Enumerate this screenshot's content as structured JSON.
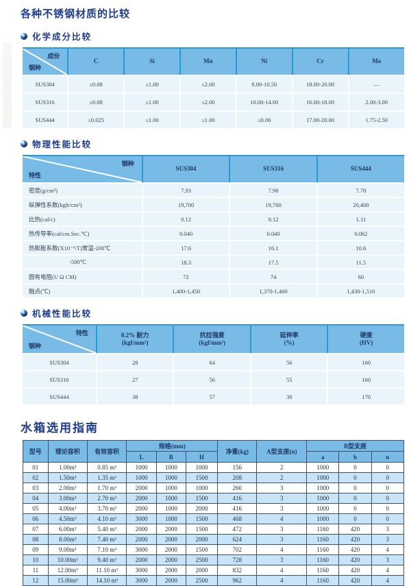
{
  "page": {
    "title": "各种不锈钢材质的比较"
  },
  "colors": {
    "accent_navy": "#1e3c8c",
    "table_header_blue": "#79bbe7",
    "table_separator_blue": "#2a9ad4",
    "cell_light_blue": "#eaf4fb",
    "tank_row_alt_blue": "#c8e4f8",
    "tank_border": "#3f5062"
  },
  "icons": {
    "section_bullet": "sphere-bullet-icon"
  },
  "chemical": {
    "section_label": "化学成分比较",
    "corner_top_right": "成份",
    "corner_bottom_left": "钢种",
    "columns": [
      "C",
      "Si",
      "Mn",
      "Ni",
      "Cr",
      "Mo"
    ],
    "rows": [
      {
        "name": "SUS304",
        "values": [
          "≤0.08",
          "≤1.00",
          "≤2.00",
          "8.00-10.50",
          "18.00-20.00",
          "—"
        ]
      },
      {
        "name": "SUS316",
        "values": [
          "≤0.08",
          "≤1.00",
          "≤2.00",
          "10.00-14.00",
          "16.00-18.00",
          "2.00-3.00"
        ]
      },
      {
        "name": "SUS444",
        "values": [
          "≤0.025",
          "≤1.00",
          "≤1.00",
          "≤0.06",
          "17.00-20.00",
          "1.75-2.50"
        ]
      }
    ]
  },
  "physical": {
    "section_label": "物理性能比较",
    "corner_top_right": "钢种",
    "corner_bottom_left": "特性",
    "columns": [
      "SUS304",
      "SUS316",
      "SUS444"
    ],
    "rows": [
      {
        "name": "密度(g/cm³)",
        "values": [
          "7.93",
          "7.98",
          "7.70"
        ]
      },
      {
        "name": "纵弹性系数(kgfr/cm²)",
        "values": [
          "19,700",
          "19,700",
          "20,400"
        ]
      },
      {
        "name": "比热(cal/c)",
        "values": [
          "0.12",
          "0.12",
          "1.11"
        ]
      },
      {
        "name": "热传导率(cal/cm.Sec.℃)",
        "values": [
          "0.040",
          "0.040",
          "0.062"
        ]
      },
      {
        "name": "热膨胀系数(X10⁻⁶/T)常温-200℃",
        "values": [
          "17.6",
          "16.1",
          "10.6"
        ]
      },
      {
        "name": "-500℃",
        "indent": true,
        "values": [
          "18.3",
          "17.5",
          "11.5"
        ]
      },
      {
        "name": "固有电阻(U Ω CM)",
        "values": [
          "72",
          "74",
          "60"
        ]
      },
      {
        "name": "融点(℃)",
        "values": [
          "1,400-1,450",
          "1,370-1,400",
          "1,430-1,510"
        ]
      }
    ]
  },
  "mechanical": {
    "section_label": "机械性能比较",
    "corner_top_right": "特性",
    "corner_bottom_left": "钢种",
    "columns": [
      {
        "title": "0.2% 耐力",
        "unit": "(kgf/mm²)"
      },
      {
        "title": "抗拉强度",
        "unit": "(kgf/mm²)"
      },
      {
        "title": "延伸率",
        "unit": "(%)"
      },
      {
        "title": "硬度",
        "unit": "(HV)"
      }
    ],
    "rows": [
      {
        "name": "SUS304",
        "values": [
          "28",
          "64",
          "56",
          "160"
        ]
      },
      {
        "name": "SUS316",
        "values": [
          "27",
          "56",
          "55",
          "160"
        ]
      },
      {
        "name": "SUS444",
        "values": [
          "38",
          "57",
          "30",
          "170"
        ]
      }
    ]
  },
  "tank": {
    "section_title": "水箱选用指南",
    "header": {
      "model": "型号",
      "theory": "理论容积",
      "effective": "有效容积",
      "spec_group": "规格(mm)",
      "spec_cols": [
        "L",
        "B",
        "H"
      ],
      "net": "净重(kg)",
      "a_seat": "A型支座(n)",
      "b_group": "B型支座",
      "b_cols": [
        "a",
        "b",
        "n"
      ]
    },
    "rows": [
      [
        "01",
        "1.00m³",
        "0.85 m³",
        "1000",
        "1000",
        "1000",
        "156",
        "2",
        "1000",
        "0",
        "0"
      ],
      [
        "02",
        "1.50m³",
        "1.35 m³",
        "1000",
        "1000",
        "1500",
        "208",
        "2",
        "1000",
        "0",
        "0"
      ],
      [
        "03",
        "2.00m³",
        "1.70 m³",
        "2000",
        "1000",
        "1000",
        "260",
        "3",
        "1000",
        "0",
        "0"
      ],
      [
        "04",
        "3.00m³",
        "2.70 m³",
        "2000",
        "1000",
        "1500",
        "416",
        "3",
        "1000",
        "0",
        "0"
      ],
      [
        "05",
        "4.00m³",
        "3.70 m³",
        "2000",
        "1000",
        "2000",
        "416",
        "3",
        "1000",
        "0",
        "0"
      ],
      [
        "06",
        "4.50m³",
        "4.10 m³",
        "3000",
        "1000",
        "1500",
        "468",
        "4",
        "1000",
        "0",
        "0"
      ],
      [
        "07",
        "6.00m³",
        "5.40 m³",
        "2000",
        "2000",
        "1500",
        "472",
        "3",
        "1160",
        "420",
        "3"
      ],
      [
        "08",
        "8.00m³",
        "7.40 m³",
        "2000",
        "2000",
        "2000",
        "624",
        "3",
        "1160",
        "420",
        "3"
      ],
      [
        "09",
        "9.00m³",
        "7.10 m³",
        "3000",
        "2000",
        "1500",
        "702",
        "4",
        "1160",
        "420",
        "4"
      ],
      [
        "10",
        "10.00m³",
        "9.40 m³",
        "2000",
        "2000",
        "2500",
        "728",
        "3",
        "1160",
        "420",
        "3"
      ],
      [
        "11",
        "12.00m³",
        "11.10 m³",
        "3000",
        "2000",
        "2000",
        "832",
        "4",
        "1160",
        "420",
        "4"
      ],
      [
        "12",
        "15.00m³",
        "14.10 m³",
        "3000",
        "2000",
        "2500",
        "962",
        "4",
        "1160",
        "420",
        "4"
      ]
    ]
  }
}
